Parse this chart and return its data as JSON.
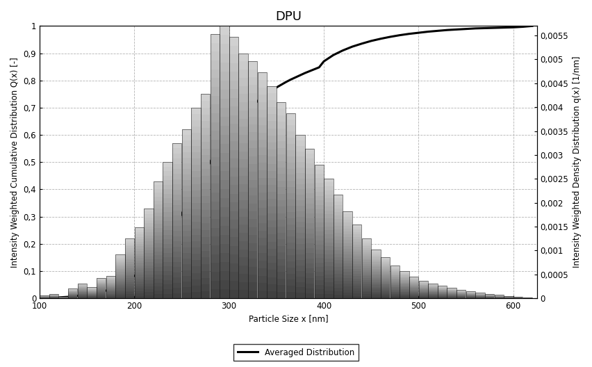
{
  "title": "DPU",
  "xlabel": "Particle Size x [nm]",
  "ylabel_left": "Intensity Weighted Cumulative Distribution Q(x) [-]",
  "ylabel_right": "Intensity Weighted Density Distribution q(x) [1/nm]",
  "xlim": [
    100,
    625
  ],
  "ylim_left": [
    0,
    1.0
  ],
  "ylim_right": [
    0,
    0.0057
  ],
  "yticks_left": [
    0,
    0.1,
    0.2,
    0.3,
    0.4,
    0.5,
    0.6,
    0.7,
    0.8,
    0.9,
    1.0
  ],
  "yticks_right": [
    0,
    0.0005,
    0.001,
    0.0015,
    0.002,
    0.0025,
    0.003,
    0.0035,
    0.004,
    0.0045,
    0.005,
    0.0055
  ],
  "ytick_labels_left": [
    "0",
    "0,1",
    "0,2",
    "0,3",
    "0,4",
    "0,5",
    "0,6",
    "0,7",
    "0,8",
    "0,9",
    "1"
  ],
  "ytick_labels_right": [
    "0",
    "0,0005",
    "0,001",
    "0,0015",
    "0,002",
    "0,0025",
    "0,003",
    "0,0035",
    "0,004",
    "0,0045",
    "0,005",
    "0,0055"
  ],
  "xticks": [
    100,
    200,
    300,
    400,
    500,
    600
  ],
  "bar_centers": [
    105,
    115,
    125,
    135,
    145,
    155,
    165,
    175,
    185,
    195,
    205,
    215,
    225,
    235,
    245,
    255,
    265,
    275,
    285,
    295,
    305,
    315,
    325,
    335,
    345,
    355,
    365,
    375,
    385,
    395,
    405,
    415,
    425,
    435,
    445,
    455,
    465,
    475,
    485,
    495,
    505,
    515,
    525,
    535,
    545,
    555,
    565,
    575,
    585,
    595,
    605,
    615
  ],
  "bar_heights_normalized": [
    0.01,
    0.015,
    0.005,
    0.035,
    0.055,
    0.04,
    0.075,
    0.082,
    0.16,
    0.22,
    0.26,
    0.33,
    0.43,
    0.5,
    0.57,
    0.62,
    0.7,
    0.75,
    0.97,
    1.0,
    0.96,
    0.9,
    0.87,
    0.83,
    0.78,
    0.72,
    0.68,
    0.6,
    0.55,
    0.49,
    0.44,
    0.38,
    0.32,
    0.27,
    0.22,
    0.18,
    0.15,
    0.12,
    0.1,
    0.08,
    0.065,
    0.055,
    0.045,
    0.038,
    0.03,
    0.025,
    0.02,
    0.016,
    0.012,
    0.009,
    0.006,
    0.003
  ],
  "bar_width": 9.8,
  "cumulative_x": [
    100,
    105,
    110,
    115,
    120,
    125,
    130,
    135,
    140,
    145,
    150,
    155,
    160,
    165,
    170,
    175,
    180,
    185,
    190,
    195,
    200,
    205,
    210,
    215,
    220,
    225,
    230,
    235,
    240,
    245,
    250,
    255,
    260,
    265,
    270,
    275,
    280,
    285,
    290,
    295,
    300,
    305,
    310,
    315,
    320,
    325,
    330,
    335,
    340,
    345,
    350,
    355,
    360,
    365,
    370,
    375,
    380,
    385,
    390,
    395,
    400,
    410,
    420,
    430,
    440,
    450,
    460,
    470,
    480,
    490,
    500,
    510,
    520,
    530,
    540,
    550,
    560,
    570,
    580,
    590,
    600,
    610,
    620
  ],
  "cumulative_y": [
    0.0,
    0.001,
    0.001,
    0.002,
    0.003,
    0.004,
    0.005,
    0.007,
    0.009,
    0.012,
    0.014,
    0.017,
    0.02,
    0.024,
    0.028,
    0.033,
    0.04,
    0.048,
    0.058,
    0.069,
    0.082,
    0.096,
    0.112,
    0.13,
    0.15,
    0.172,
    0.196,
    0.222,
    0.25,
    0.279,
    0.31,
    0.342,
    0.374,
    0.406,
    0.438,
    0.47,
    0.5,
    0.53,
    0.558,
    0.584,
    0.609,
    0.632,
    0.653,
    0.673,
    0.691,
    0.708,
    0.724,
    0.738,
    0.751,
    0.763,
    0.774,
    0.784,
    0.794,
    0.803,
    0.811,
    0.819,
    0.827,
    0.834,
    0.841,
    0.848,
    0.87,
    0.893,
    0.91,
    0.924,
    0.935,
    0.945,
    0.953,
    0.96,
    0.966,
    0.971,
    0.975,
    0.979,
    0.982,
    0.985,
    0.987,
    0.989,
    0.991,
    0.992,
    0.993,
    0.994,
    0.995,
    0.997,
    1.0
  ],
  "line_color": "#000000",
  "line_width": 2.2,
  "bar_edge_color": "#222222",
  "bar_edge_width": 0.4,
  "grid_color": "#aaaaaa",
  "grid_linestyle": "--",
  "legend_label": "Averaged Distribution",
  "background_color": "#ffffff",
  "title_fontsize": 13,
  "label_fontsize": 8.5,
  "tick_fontsize": 8.5
}
